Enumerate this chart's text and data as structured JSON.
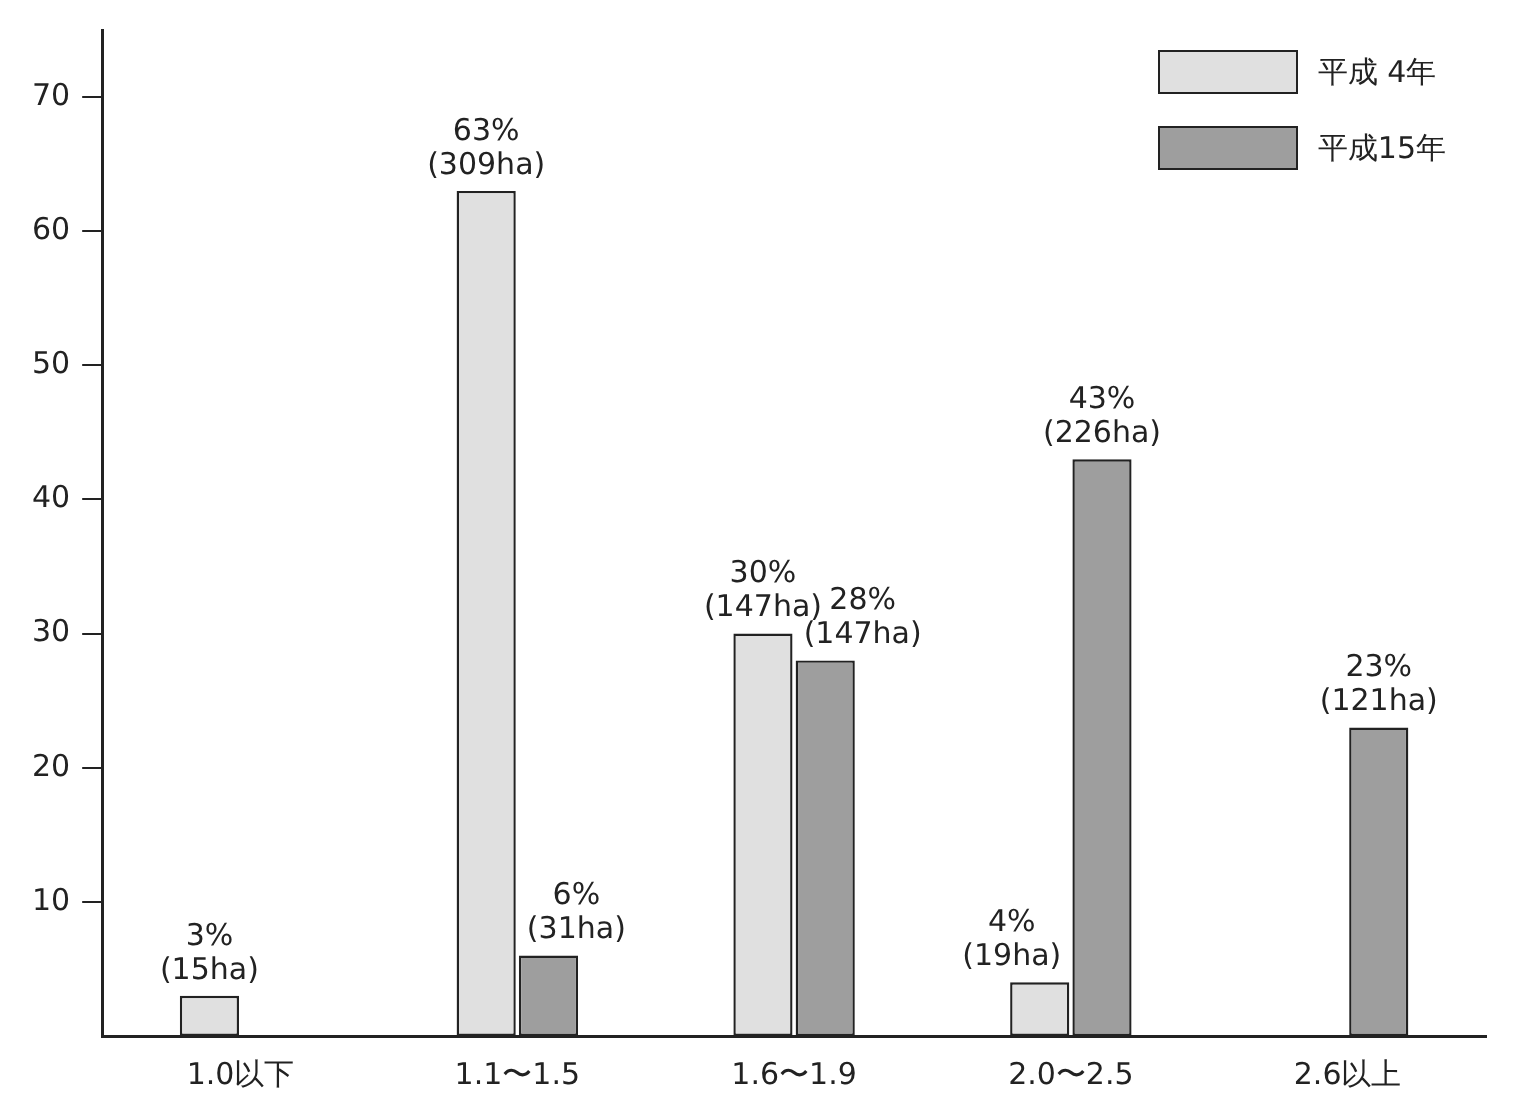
{
  "chart_data": {
    "type": "bar",
    "categories": [
      "1.0以下",
      "1.1〜1.5",
      "1.6〜1.9",
      "2.0〜2.5",
      "2.6以上"
    ],
    "series": [
      {
        "name": "平成 4年",
        "color": "#e0e0e0",
        "values": [
          3,
          63,
          30,
          4,
          null
        ],
        "value_labels": [
          "3%\n(15ha)",
          "63%\n(309ha)",
          "30%\n(147ha)",
          "4%\n(19ha)",
          null
        ]
      },
      {
        "name": "平成15年",
        "color": "#9e9e9e",
        "values": [
          null,
          6,
          28,
          43,
          23
        ],
        "value_labels": [
          null,
          "6%\n(31ha)",
          "28%\n(147ha)",
          "43%\n(226ha)",
          "23%\n(121ha)"
        ]
      }
    ],
    "ylim": [
      0,
      75
    ],
    "yticks": [
      10,
      20,
      30,
      40,
      50,
      60,
      70
    ],
    "grid": false,
    "legend": "top right"
  }
}
